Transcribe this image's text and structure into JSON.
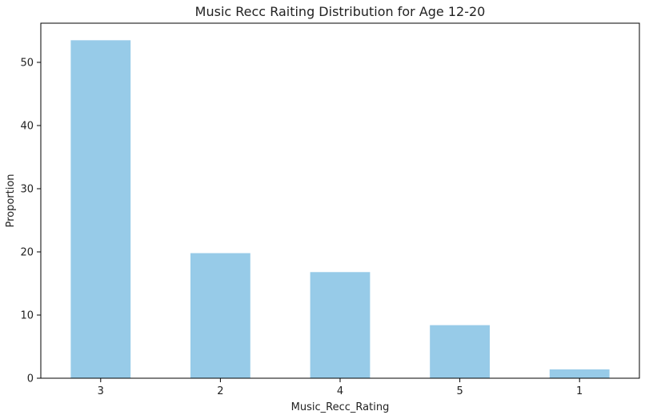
{
  "chart_data": {
    "type": "bar",
    "title": "Music Recc Raiting Distribution for Age 12-20",
    "xlabel": "Music_Recc_Rating",
    "ylabel": "Proportion",
    "categories": [
      "3",
      "2",
      "4",
      "5",
      "1"
    ],
    "values": [
      53.5,
      19.8,
      16.8,
      8.4,
      1.4
    ],
    "ylim": [
      0,
      56.2
    ],
    "yticks": [
      0,
      10,
      20,
      30,
      40,
      50
    ],
    "bar_color": "#97cbe8",
    "grid": false,
    "legend": "none"
  }
}
